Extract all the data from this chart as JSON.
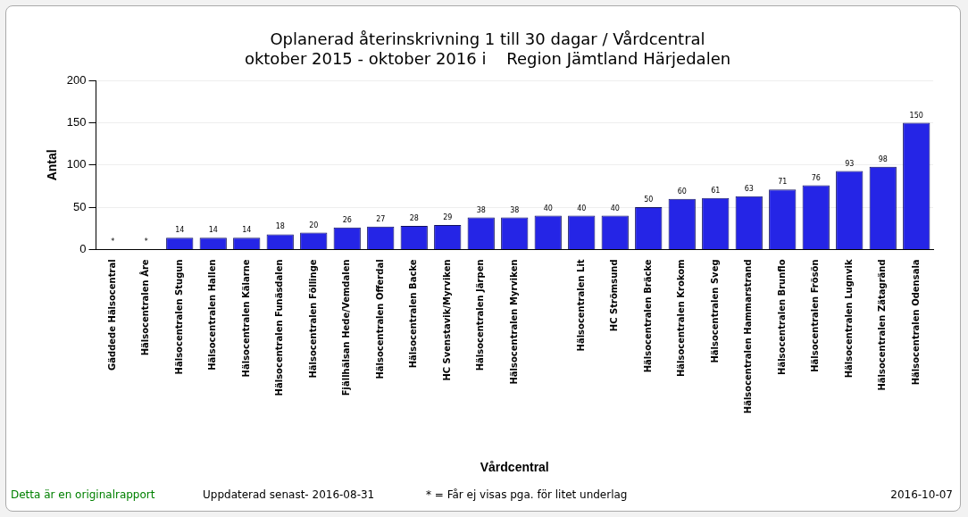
{
  "chart_data": {
    "type": "bar",
    "title": "Oplanerad återinskrivning 1 till 30 dagar / Vårdcentral",
    "subtitle": "oktober 2015 - oktober 2016 i    Region Jämtland Härjedalen",
    "xlabel": "Vårdcentral",
    "ylabel": "Antal",
    "categories": [
      "Gäddede Hälsocentral",
      "Hälsocentralen Åre",
      "Hälsocentralen Stugun",
      "Hälsocentralen Hallen",
      "Hälsocentralen Kälarne",
      "Hälsocentralen Funäsdalen",
      "Hälsocentralen Föllinge",
      "Fjällhälsan Hede/Vemdalen",
      "Hälsocentralen Offerdal",
      "Hälsocentralen Backe",
      "HC Svenstavik/Myrviken",
      "Hälsocentralen Järpen",
      "Hälsocentralen Myrviken",
      null,
      "Hälsocentralen Lit",
      "HC Strömsund",
      "Hälsocentralen Bräcke",
      "Hälsocentralen Krokom",
      "Hälsocentralen Sveg",
      "Hälsocentralen Hammarstrand",
      "Hälsocentralen Brunflo",
      "Hälsocentralen Frösön",
      "Hälsocentralen Lugnvik",
      "Hälsocentralen Zätagränd",
      "Hälsocentralen Odensala"
    ],
    "values": [
      null,
      null,
      14,
      14,
      14,
      18,
      20,
      26,
      27,
      28,
      29,
      38,
      38,
      40,
      40,
      40,
      50,
      60,
      61,
      63,
      71,
      76,
      93,
      98,
      150
    ],
    "value_labels": [
      "*",
      "*",
      "14",
      "14",
      "14",
      "18",
      "20",
      "26",
      "27",
      "28",
      "29",
      "38",
      "38",
      "40",
      "40",
      "40",
      "50",
      "60",
      "61",
      "63",
      "71",
      "76",
      "93",
      "98",
      "150"
    ],
    "color": "#2525e6",
    "ylim": [
      0,
      200
    ],
    "yticks": [
      0,
      50,
      100,
      150,
      200
    ],
    "grid": "y",
    "legend": false,
    "annotations": [
      "Detta är en originalrapport",
      "Uppdaterad senast- 2016-08-31",
      "* = Får ej visas pga. för litet underlag",
      "2016-10-07"
    ]
  }
}
